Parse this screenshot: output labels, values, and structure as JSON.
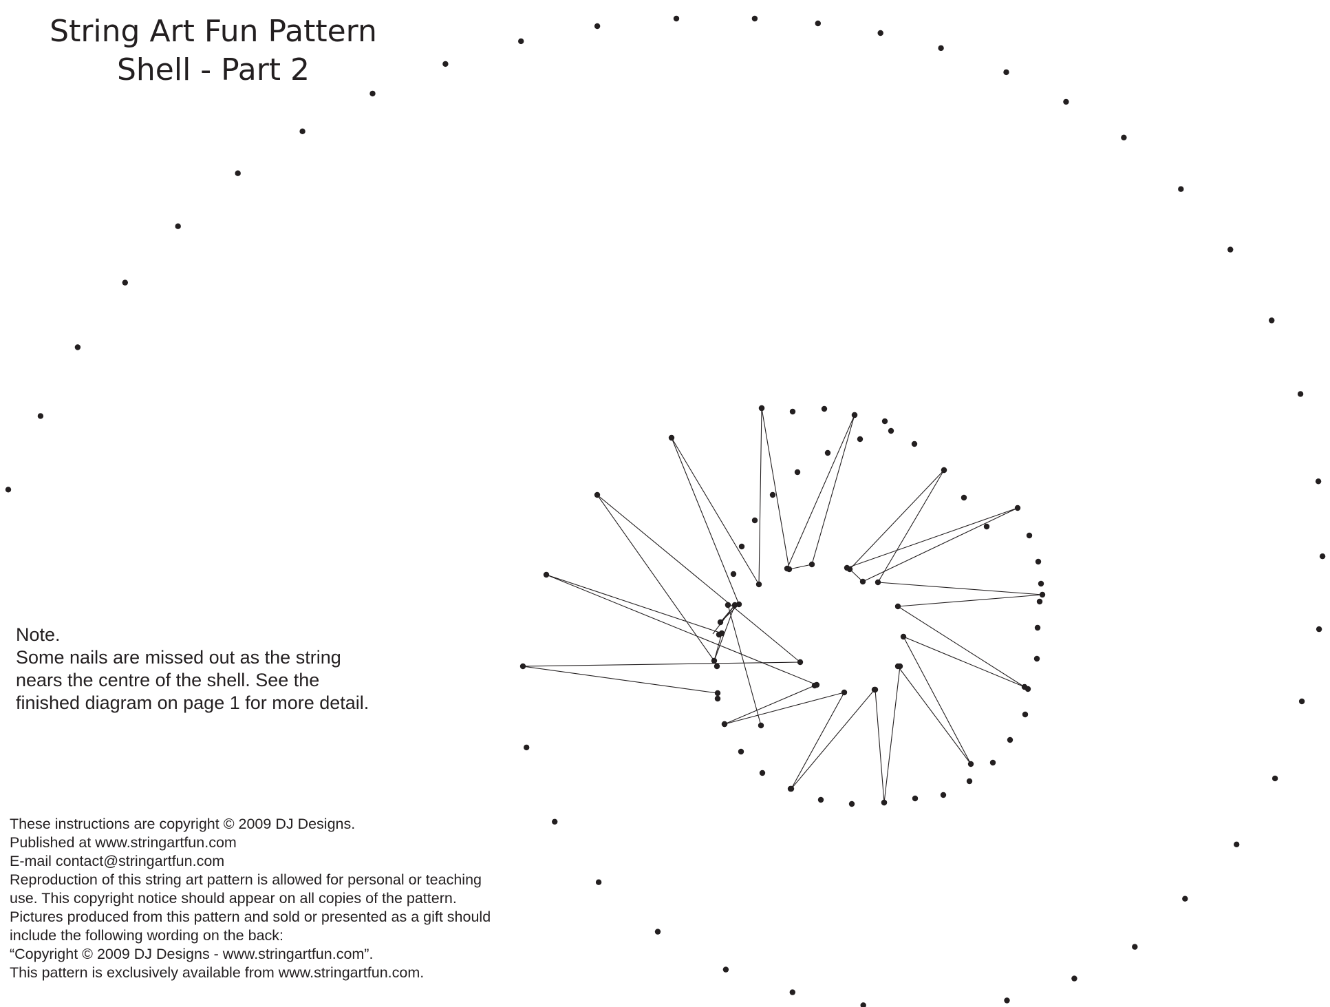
{
  "title": {
    "line1": "String Art Fun Pattern",
    "line2": "Shell - Part 2"
  },
  "note": {
    "heading": "Note.",
    "lines": [
      "Some nails are missed out as the string",
      "nears the centre of the shell. See the",
      "finished diagram on page 1 for more detail."
    ]
  },
  "copyright": {
    "lines": [
      "These instructions are copyright © 2009 DJ Designs.",
      "Published at www.stringartfun.com",
      "E-mail contact@stringartfun.com",
      "Reproduction of this string art pattern is allowed for personal or teaching",
      "use. This copyright notice should appear on all copies of the pattern.",
      "Pictures produced from this pattern and sold or presented as a gift should",
      "include the following wording on the back:",
      "“Copyright © 2009 DJ Designs - www.stringartfun.com”.",
      "This pattern is exclusively available from www.stringartfun.com."
    ]
  },
  "colors": {
    "ink": "#231f20",
    "background": "#ffffff"
  }
}
